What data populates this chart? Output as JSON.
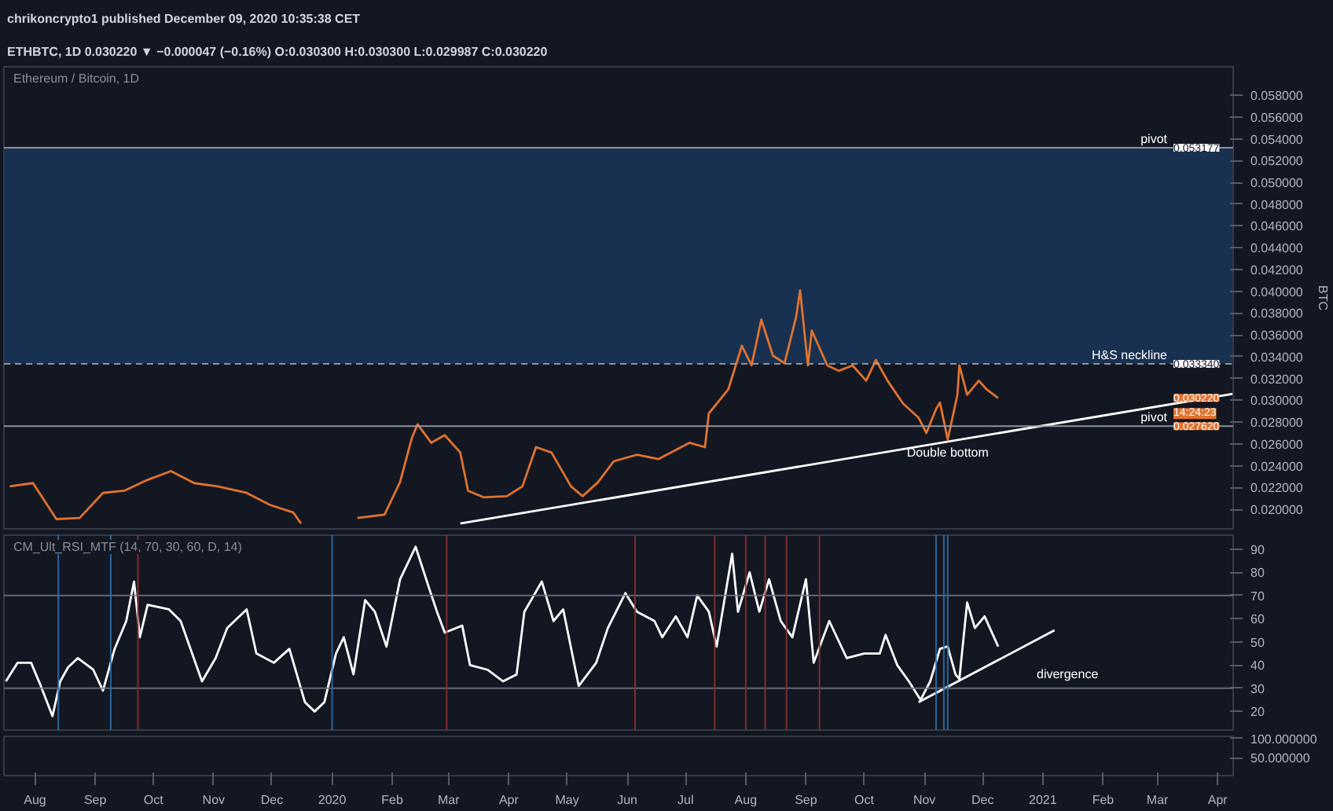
{
  "chart_data": [
    {
      "type": "line",
      "title": "Ethereum / Bitcoin, 1D",
      "ylabel": "BTC",
      "annotations": [
        "chrikoncrypto1 published December 09, 2020 10:35:38 CET",
        "ETHBTC, 1D 0.030220 ▼ −0.000047 (−0.16%) O:0.030300 H:0.030300 L:0.029987 C:0.030220",
        {
          "text": "Double bottom",
          "x": "2020-11-13",
          "y": 0.0264
        },
        {
          "text": "0.053177",
          "y": 0.053177
        },
        {
          "text": "0.033340",
          "y": 0.03334
        },
        {
          "text": "0.027620",
          "y": 0.02762
        },
        {
          "text": "0.030220",
          "y": 0.03022
        },
        "14:24:23"
      ],
      "xlim": [
        "2019-07-16",
        "2021-04-09"
      ],
      "ylim": [
        0.0182,
        0.0606
      ],
      "yticks": [
        {
          "value": 0.02,
          "label": "0.020000"
        },
        {
          "value": 0.022,
          "label": "0.022000"
        },
        {
          "value": 0.024,
          "label": "0.024000"
        },
        {
          "value": 0.026,
          "label": "0.026000"
        },
        {
          "value": 0.028,
          "label": "0.028000"
        },
        {
          "value": 0.03,
          "label": "0.030000"
        },
        {
          "value": 0.032,
          "label": "0.032000"
        },
        {
          "value": 0.034,
          "label": "0.034000"
        },
        {
          "value": 0.036,
          "label": "0.036000"
        },
        {
          "value": 0.038,
          "label": "0.038000"
        },
        {
          "value": 0.04,
          "label": "0.040000"
        },
        {
          "value": 0.042,
          "label": "0.042000"
        },
        {
          "value": 0.044,
          "label": "0.044000"
        },
        {
          "value": 0.046,
          "label": "0.046000"
        },
        {
          "value": 0.048,
          "label": "0.048000"
        },
        {
          "value": 0.05,
          "label": "0.050000"
        },
        {
          "value": 0.052,
          "label": "0.052000"
        },
        {
          "value": 0.054,
          "label": "0.054000"
        },
        {
          "value": 0.056,
          "label": "0.056000"
        },
        {
          "value": 0.058,
          "label": "0.058000"
        }
      ],
      "tick_labels": "y",
      "grid": false,
      "line_style": "solid",
      "ref_lines": [
        {
          "axis": "y",
          "value": 0.053177,
          "label": "pivot",
          "color": "#9aa0ab"
        },
        {
          "axis": "y",
          "value": 0.03334,
          "label": "H&S neckline",
          "color": "#9aa0ab",
          "line_style": "dashed"
        },
        {
          "axis": "y",
          "value": 0.02762,
          "label": "pivot",
          "color": "#9aa0ab"
        }
      ],
      "bands": [
        {
          "axis": "y",
          "from": 0.03334,
          "to": 0.053177,
          "label": null,
          "color": "#1c3b60"
        }
      ],
      "series": [
        {
          "color": "#e0722f",
          "x": [
            "2019-07-19",
            "2019-07-31",
            "2019-08-12",
            "2019-08-24",
            "2019-09-05",
            "2019-09-16",
            "2019-09-28",
            "2019-10-10",
            "2019-10-22",
            "2019-11-03",
            "2019-11-18",
            "2019-11-30",
            "2019-12-12",
            "2019-12-16",
            "2019-12-29",
            "2020-01-14",
            "2020-01-28",
            "2020-02-05",
            "2020-02-11",
            "2020-02-14",
            "2020-02-21",
            "2020-02-28",
            "2020-03-07",
            "2020-03-11",
            "2020-03-19",
            "2020-03-31",
            "2020-04-08",
            "2020-04-15",
            "2020-04-23",
            "2020-05-03",
            "2020-05-09",
            "2020-05-17",
            "2020-05-25",
            "2020-06-06",
            "2020-06-17",
            "2020-07-03",
            "2020-07-11",
            "2020-07-13",
            "2020-07-23",
            "2020-07-30",
            "2020-08-04",
            "2020-08-09",
            "2020-08-15",
            "2020-08-21",
            "2020-08-27",
            "2020-08-29",
            "2020-09-02",
            "2020-09-04",
            "2020-09-12",
            "2020-09-18",
            "2020-09-25",
            "2020-10-02",
            "2020-10-07",
            "2020-10-13",
            "2020-10-21",
            "2020-10-29",
            "2020-11-02",
            "2020-11-07",
            "2020-11-09",
            "2020-11-13",
            "2020-11-18",
            "2020-11-19",
            "2020-11-23",
            "2020-11-29",
            "2020-12-03",
            "2020-12-09"
          ],
          "values": [
            0.0221,
            0.0224,
            0.0191,
            0.0192,
            0.0215,
            0.0217,
            0.0227,
            0.0235,
            0.0224,
            0.0221,
            0.0215,
            0.0204,
            0.0197,
            0.0187,
            null,
            0.0192,
            0.0195,
            0.0225,
            0.0265,
            0.0278,
            0.0261,
            0.0268,
            0.0252,
            0.0217,
            0.0211,
            0.0212,
            0.0221,
            0.0257,
            0.0252,
            0.0221,
            0.0212,
            0.0225,
            0.0244,
            0.025,
            0.0246,
            0.0261,
            0.0257,
            0.0288,
            0.031,
            0.035,
            0.0332,
            0.0374,
            0.0341,
            0.0334,
            0.0377,
            0.0401,
            0.0332,
            0.0364,
            0.0332,
            0.0327,
            0.0332,
            0.0318,
            0.0337,
            0.0318,
            0.0297,
            0.0284,
            0.027,
            0.0292,
            0.0298,
            0.0264,
            0.0305,
            0.0332,
            0.0305,
            0.0318,
            0.031,
            0.0302
          ]
        },
        {
          "type": "line",
          "color": "#ffffff",
          "x": [
            "2020-03-07",
            "2021-04-09"
          ],
          "values": [
            0.0187,
            0.0306
          ]
        }
      ]
    },
    {
      "type": "line",
      "title": "CM_Ult_RSI_MTF (14, 70, 30, 60, D, 14)",
      "annotations": [
        "divergence"
      ],
      "xlim": [
        "2019-07-16",
        "2021-04-09"
      ],
      "ylim": [
        12,
        96
      ],
      "yticks": [
        20,
        30,
        40,
        50,
        60,
        70,
        80,
        90
      ],
      "tick_labels": "y",
      "grid": false,
      "line_style": "solid",
      "ref_lines": [
        {
          "axis": "y",
          "value": 70,
          "label": null,
          "color": "#6b7280"
        },
        {
          "axis": "y",
          "value": 30,
          "label": null,
          "color": "#6b7280"
        },
        {
          "axis": "x",
          "value": "2019-08-13",
          "label": null,
          "color": "#2f6fa8"
        },
        {
          "axis": "x",
          "value": "2019-09-09",
          "label": null,
          "color": "#2f6fa8"
        },
        {
          "axis": "x",
          "value": "2019-09-23",
          "label": null,
          "color": "#8a2f2f"
        },
        {
          "axis": "x",
          "value": "2020-01-01",
          "label": null,
          "color": "#2f6fa8"
        },
        {
          "axis": "x",
          "value": "2020-02-29",
          "label": null,
          "color": "#8a2f2f"
        },
        {
          "axis": "x",
          "value": "2020-06-05",
          "label": null,
          "color": "#8a2f2f"
        },
        {
          "axis": "x",
          "value": "2020-07-16",
          "label": null,
          "color": "#8a2f2f"
        },
        {
          "axis": "x",
          "value": "2020-08-01",
          "label": null,
          "color": "#8a2f2f"
        },
        {
          "axis": "x",
          "value": "2020-08-11",
          "label": null,
          "color": "#8a2f2f"
        },
        {
          "axis": "x",
          "value": "2020-08-22",
          "label": null,
          "color": "#8a2f2f"
        },
        {
          "axis": "x",
          "value": "2020-09-08",
          "label": null,
          "color": "#8a2f2f"
        },
        {
          "axis": "x",
          "value": "2020-11-07",
          "label": null,
          "color": "#2f6fa8"
        },
        {
          "axis": "x",
          "value": "2020-11-11",
          "label": null,
          "color": "#2f6fa8"
        },
        {
          "axis": "x",
          "value": "2020-11-13",
          "label": null,
          "color": "#2f6fa8"
        }
      ],
      "series": [
        {
          "color": "#ffffff",
          "x": [
            "2019-07-17",
            "2019-07-23",
            "2019-07-30",
            "2019-08-04",
            "2019-08-10",
            "2019-08-14",
            "2019-08-18",
            "2019-08-23",
            "2019-08-31",
            "2019-09-05",
            "2019-09-11",
            "2019-09-17",
            "2019-09-21",
            "2019-09-24",
            "2019-09-28",
            "2019-10-09",
            "2019-10-15",
            "2019-10-26",
            "2019-11-02",
            "2019-11-08",
            "2019-11-18",
            "2019-11-23",
            "2019-12-02",
            "2019-12-10",
            "2019-12-18",
            "2019-12-23",
            "2019-12-28",
            "2020-01-03",
            "2020-01-07",
            "2020-01-12",
            "2020-01-18",
            "2020-01-23",
            "2020-01-29",
            "2020-02-05",
            "2020-02-13",
            "2020-02-20",
            "2020-02-24",
            "2020-02-28",
            "2020-03-08",
            "2020-03-12",
            "2020-03-21",
            "2020-03-29",
            "2020-04-05",
            "2020-04-09",
            "2020-04-18",
            "2020-04-24",
            "2020-04-29",
            "2020-05-07",
            "2020-05-16",
            "2020-05-22",
            "2020-05-31",
            "2020-06-06",
            "2020-06-15",
            "2020-06-19",
            "2020-06-26",
            "2020-07-02",
            "2020-07-07",
            "2020-07-13",
            "2020-07-17",
            "2020-07-25",
            "2020-07-28",
            "2020-08-03",
            "2020-08-08",
            "2020-08-13",
            "2020-08-19",
            "2020-08-25",
            "2020-09-01",
            "2020-09-05",
            "2020-09-13",
            "2020-09-22",
            "2020-10-01",
            "2020-10-09",
            "2020-10-12",
            "2020-10-18",
            "2020-10-24",
            "2020-10-30",
            "2020-11-04",
            "2020-11-09",
            "2020-11-13",
            "2020-11-17",
            "2020-11-19",
            "2020-11-23",
            "2020-11-27",
            "2020-12-02",
            "2020-12-09"
          ],
          "values": [
            33,
            41,
            41,
            31,
            18,
            33,
            39,
            43,
            38,
            29,
            47,
            59,
            76,
            52,
            66,
            64,
            59,
            33,
            43,
            56,
            64,
            45,
            41,
            47,
            24,
            20,
            24,
            45,
            52,
            36,
            68,
            63,
            48,
            77,
            91,
            73,
            63,
            54,
            57,
            40,
            38,
            33,
            36,
            63,
            76,
            59,
            64,
            31,
            41,
            56,
            71,
            63,
            59,
            52,
            61,
            52,
            70,
            63,
            48,
            88,
            63,
            80,
            63,
            77,
            59,
            52,
            77,
            41,
            59,
            43,
            45,
            45,
            53,
            40,
            33,
            25,
            33,
            47,
            48,
            36,
            34,
            67,
            56,
            61,
            48
          ]
        },
        {
          "type": "line",
          "color": "#ffffff",
          "x": [
            "2020-10-29",
            "2021-01-07"
          ],
          "values": [
            24,
            55
          ]
        }
      ]
    },
    {
      "type": "line",
      "xlim": [
        "2019-07-16",
        "2021-04-09"
      ],
      "ylim": [
        4,
        105
      ],
      "yticks": [
        {
          "value": 100,
          "label": "100.000000"
        },
        {
          "value": 50,
          "label": "50.000000"
        }
      ],
      "xticks": [
        {
          "value": "2019-08-01",
          "label": "Aug"
        },
        {
          "value": "2019-09-01",
          "label": "Sep"
        },
        {
          "value": "2019-10-01",
          "label": "Oct"
        },
        {
          "value": "2019-11-01",
          "label": "Nov"
        },
        {
          "value": "2019-12-01",
          "label": "Dec"
        },
        {
          "value": "2020-01-01",
          "label": "2020"
        },
        {
          "value": "2020-02-01",
          "label": "Feb"
        },
        {
          "value": "2020-03-01",
          "label": "Mar"
        },
        {
          "value": "2020-04-01",
          "label": "Apr"
        },
        {
          "value": "2020-05-01",
          "label": "May"
        },
        {
          "value": "2020-06-01",
          "label": "Jun"
        },
        {
          "value": "2020-07-01",
          "label": "Jul"
        },
        {
          "value": "2020-08-01",
          "label": "Aug"
        },
        {
          "value": "2020-09-01",
          "label": "Sep"
        },
        {
          "value": "2020-10-01",
          "label": "Oct"
        },
        {
          "value": "2020-11-01",
          "label": "Nov"
        },
        {
          "value": "2020-12-01",
          "label": "Dec"
        },
        {
          "value": "2021-01-01",
          "label": "2021"
        },
        {
          "value": "2021-02-01",
          "label": "Feb"
        },
        {
          "value": "2021-03-01",
          "label": "Mar"
        },
        {
          "value": "2021-04-01",
          "label": "Apr"
        }
      ],
      "grid": false
    }
  ]
}
